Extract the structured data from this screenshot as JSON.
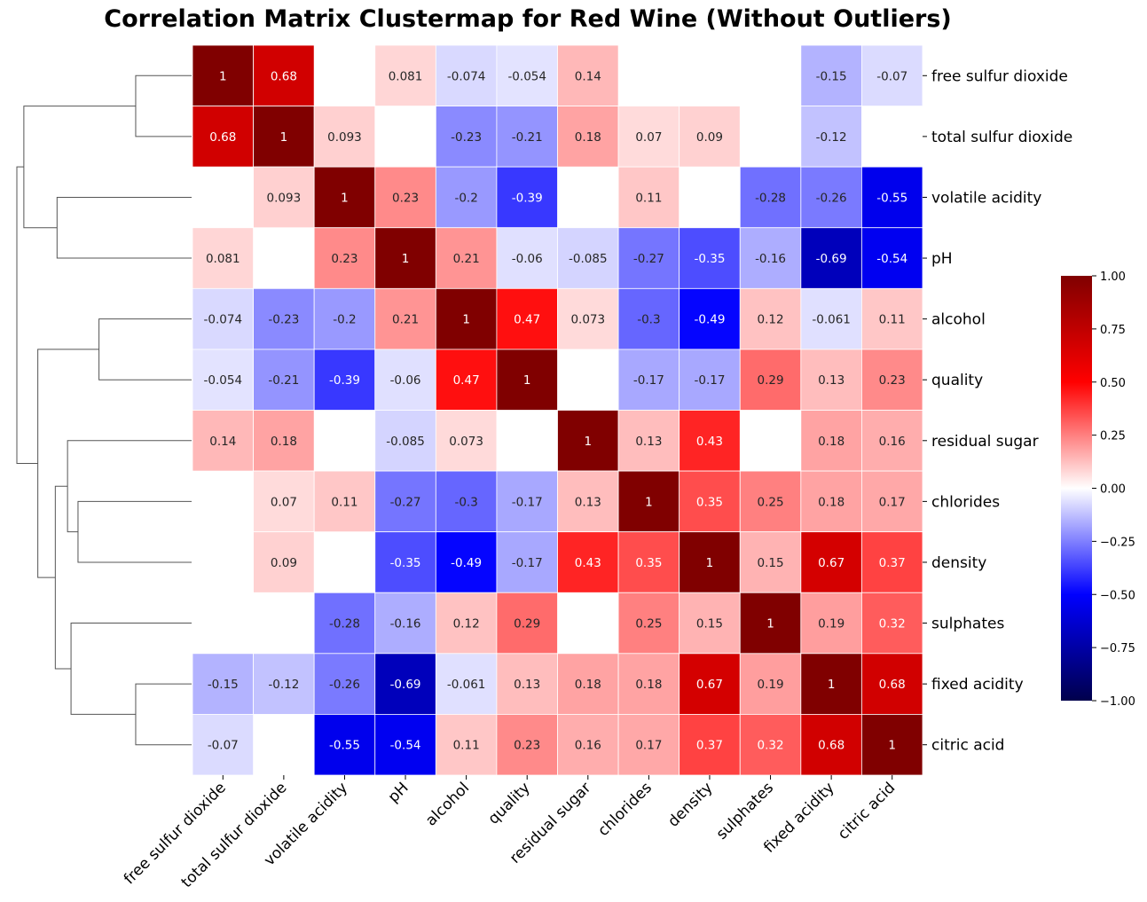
{
  "title": "Correlation Matrix Clustermap for Red Wine (Without Outliers)",
  "chart_data": {
    "type": "heatmap",
    "title": "Correlation Matrix Clustermap for Red Wine (Without Outliers)",
    "labels": [
      "free sulfur dioxide",
      "total sulfur dioxide",
      "volatile acidity",
      "pH",
      "alcohol",
      "quality",
      "residual sugar",
      "chlorides",
      "density",
      "sulphates",
      "fixed acidity",
      "citric acid"
    ],
    "matrix": [
      [
        1,
        0.68,
        null,
        0.081,
        -0.074,
        -0.054,
        0.14,
        null,
        null,
        null,
        -0.15,
        -0.07
      ],
      [
        0.68,
        1,
        0.093,
        null,
        -0.23,
        -0.21,
        0.18,
        0.07,
        0.09,
        null,
        -0.12,
        null
      ],
      [
        null,
        0.093,
        1,
        0.23,
        -0.2,
        -0.39,
        null,
        0.11,
        null,
        -0.28,
        -0.26,
        -0.55
      ],
      [
        0.081,
        null,
        0.23,
        1,
        0.21,
        -0.06,
        -0.085,
        -0.27,
        -0.35,
        -0.16,
        -0.69,
        -0.54
      ],
      [
        -0.074,
        -0.23,
        -0.2,
        0.21,
        1,
        0.47,
        0.073,
        -0.3,
        -0.49,
        0.12,
        -0.061,
        0.11
      ],
      [
        -0.054,
        -0.21,
        -0.39,
        -0.06,
        0.47,
        1,
        null,
        -0.17,
        -0.17,
        0.29,
        0.13,
        0.23
      ],
      [
        0.14,
        0.18,
        null,
        -0.085,
        0.073,
        null,
        1,
        0.13,
        0.43,
        null,
        0.18,
        0.16
      ],
      [
        null,
        0.07,
        0.11,
        -0.27,
        -0.3,
        -0.17,
        0.13,
        1,
        0.35,
        0.25,
        0.18,
        0.17
      ],
      [
        null,
        0.09,
        null,
        -0.35,
        -0.49,
        -0.17,
        0.43,
        0.35,
        1,
        0.15,
        0.67,
        0.37
      ],
      [
        null,
        null,
        -0.28,
        -0.16,
        0.12,
        0.29,
        null,
        0.25,
        0.15,
        1,
        0.19,
        0.32
      ],
      [
        -0.15,
        -0.12,
        -0.26,
        -0.69,
        -0.061,
        0.13,
        0.18,
        0.18,
        0.67,
        0.19,
        1,
        0.68
      ],
      [
        -0.07,
        null,
        -0.55,
        -0.54,
        0.11,
        0.23,
        0.16,
        0.17,
        0.37,
        0.32,
        0.68,
        1
      ]
    ],
    "colorbar": {
      "min": -1,
      "max": 1,
      "ticks": [
        "1.00",
        "0.75",
        "0.50",
        "0.25",
        "0.00",
        "−0.25",
        "−0.50",
        "−0.75",
        "−1.00"
      ],
      "colormap": "seismic"
    },
    "dendrogram": {
      "side": "left",
      "merges": [
        {
          "a": "leaf:0",
          "b": "leaf:1",
          "h": 0.32
        },
        {
          "a": "leaf:2",
          "b": "leaf:3",
          "h": 0.77
        },
        {
          "a": "leaf:4",
          "b": "leaf:5",
          "h": 0.53
        },
        {
          "a": "leaf:7",
          "b": "leaf:8",
          "h": 0.65
        },
        {
          "a": "leaf:6",
          "b": "node:3",
          "h": 0.71
        },
        {
          "a": "leaf:10",
          "b": "leaf:11",
          "h": 0.32
        },
        {
          "a": "leaf:9",
          "b": "node:5",
          "h": 0.69
        },
        {
          "a": "node:4",
          "b": "node:6",
          "h": 0.78
        },
        {
          "a": "node:2",
          "b": "node:7",
          "h": 0.88
        },
        {
          "a": "node:0",
          "b": "node:1",
          "h": 0.96
        },
        {
          "a": "node:9",
          "b": "node:8",
          "h": 1.0
        }
      ]
    }
  }
}
